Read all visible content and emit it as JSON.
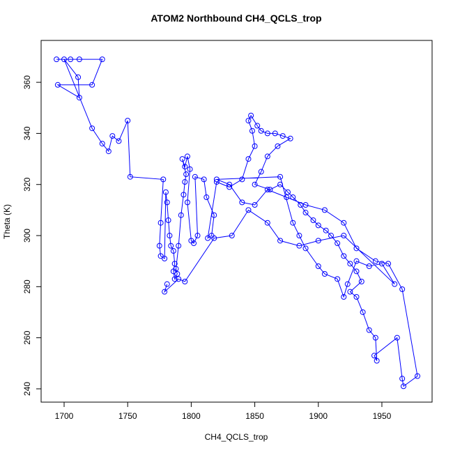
{
  "chart_data": {
    "type": "line",
    "title": "ATOM2 Northbound CH4_QCLS_trop",
    "x_label": "CH4_QCLS_trop",
    "y_label": "Theta (K)",
    "x": [
      1694,
      1705,
      1712,
      1730,
      1722,
      1695,
      1712,
      1711,
      1700,
      1722,
      1730,
      1735,
      1738,
      1743,
      1750,
      1752,
      1778,
      1776,
      1775,
      1776,
      1779,
      1780,
      1781,
      1782,
      1783,
      1784,
      1786,
      1787,
      1786,
      1787,
      1789,
      1788,
      1790,
      1792,
      1794,
      1795,
      1796,
      1793,
      1795,
      1797,
      1799,
      1797,
      1800,
      1802,
      1805,
      1803,
      1810,
      1812,
      1818,
      1816,
      1813,
      1820,
      1830,
      1840,
      1845,
      1850,
      1848,
      1845,
      1847,
      1852,
      1855,
      1860,
      1866,
      1872,
      1878,
      1868,
      1860,
      1855,
      1850,
      1862,
      1870,
      1876,
      1880,
      1886,
      1890,
      1896,
      1900,
      1906,
      1910,
      1915,
      1920,
      1925,
      1930,
      1934,
      1925,
      1930,
      1935,
      1940,
      1945,
      1946,
      1944,
      1962,
      1966,
      1967,
      1978,
      1966,
      1955,
      1945,
      1930,
      1920,
      1905,
      1890,
      1875,
      1860,
      1850,
      1840,
      1830,
      1820,
      1870,
      1880,
      1885,
      1890,
      1900,
      1905,
      1915,
      1920,
      1923,
      1930,
      1940,
      1950,
      1960,
      1920,
      1900,
      1885,
      1870,
      1860,
      1845,
      1832,
      1818,
      1795,
      1790,
      1779,
      1781
    ],
    "values": [
      369,
      369,
      369,
      369,
      359,
      359,
      354,
      362,
      369,
      342,
      336,
      333,
      339,
      337,
      345,
      323,
      322,
      305,
      296,
      292,
      291,
      317,
      313,
      306,
      300,
      296,
      294,
      289,
      286,
      283,
      285,
      287,
      296,
      308,
      316,
      321,
      324,
      330,
      327,
      331,
      326,
      313,
      298,
      297,
      300,
      323,
      322,
      315,
      308,
      300,
      299,
      321,
      319,
      322,
      330,
      335,
      341,
      345,
      347,
      343,
      341,
      340,
      340,
      339,
      338,
      335,
      331,
      325,
      320,
      318,
      320,
      317,
      315,
      312,
      309,
      306,
      304,
      302,
      300,
      297,
      292,
      289,
      286,
      282,
      278,
      276,
      270,
      263,
      260,
      251,
      253,
      260,
      244,
      241,
      245,
      279,
      289,
      290,
      295,
      305,
      310,
      312,
      315,
      318,
      312,
      313,
      320,
      322,
      323,
      305,
      300,
      295,
      288,
      285,
      283,
      276,
      281,
      290,
      288,
      289,
      281,
      300,
      298,
      296,
      298,
      305,
      310,
      300,
      299,
      282,
      283,
      278,
      281
    ],
    "color": "#0000ff",
    "xlim": [
      1681.9,
      1989.5
    ],
    "ylim": [
      234.8,
      376.4
    ],
    "xticks": [
      1700,
      1750,
      1800,
      1850,
      1900,
      1950
    ],
    "yticks": [
      240,
      260,
      280,
      300,
      320,
      340,
      360
    ]
  }
}
